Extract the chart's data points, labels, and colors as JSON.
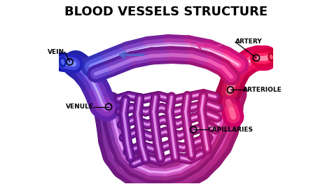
{
  "title": "BLOOD VESSELS STRUCTURE",
  "title_fontsize": 13,
  "title_fontweight": "bold",
  "background_color": "#ffffff",
  "label_fontsize": 6.5,
  "label_fontweight": "bold",
  "vein_dark": "#2222aa",
  "vein_mid": "#4444cc",
  "vein_light": "#8899ee",
  "artery_dark": "#cc0044",
  "artery_mid": "#ee2266",
  "artery_light": "#ff88aa",
  "purple_dark": "#7722aa",
  "purple_mid": "#9933cc",
  "purple_light": "#cc66dd",
  "pink_dark": "#bb2277",
  "pink_mid": "#dd3399",
  "pink_light": "#ff77cc",
  "xlim": [
    -1.05,
    1.1
  ],
  "ylim": [
    -0.82,
    0.85
  ]
}
